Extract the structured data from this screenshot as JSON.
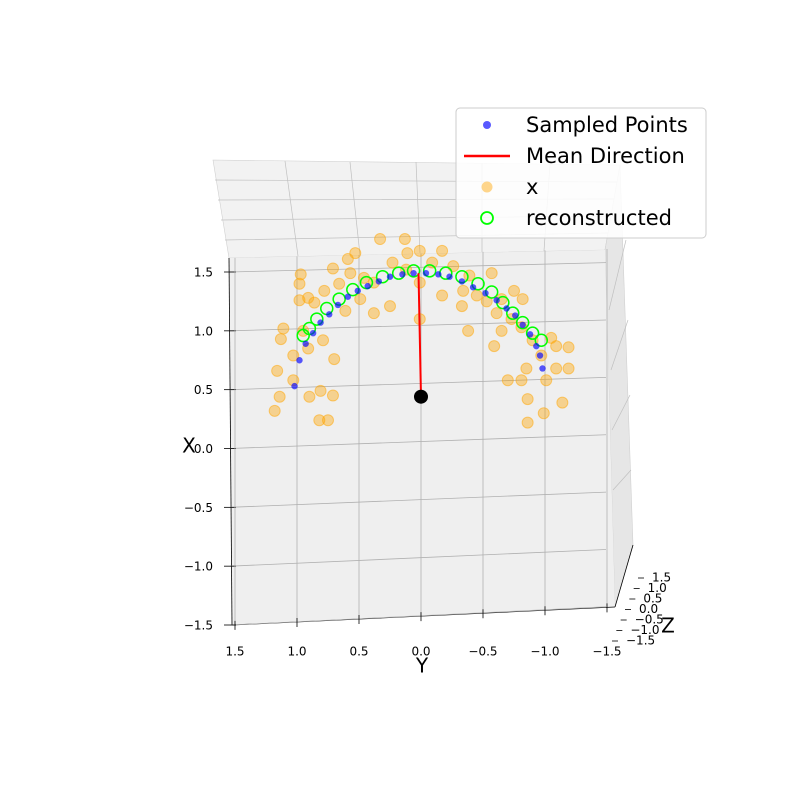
{
  "chart_data": {
    "type": "scatter3d",
    "axis_labels": {
      "X": "X",
      "Y": "Y",
      "Z": "Z"
    },
    "Xlim": [
      -1.5,
      1.5
    ],
    "Ylim": [
      1.5,
      -1.5
    ],
    "Zlim": [
      -1.5,
      1.5
    ],
    "Xticks": [
      {
        "value": -1.5,
        "label": "−1.5"
      },
      {
        "value": -1,
        "label": "−1.0"
      },
      {
        "value": -0.5,
        "label": "−0.5"
      },
      {
        "value": 0,
        "label": "0.0"
      },
      0.5,
      {
        "value": 1,
        "label": "1.0"
      },
      1.5
    ],
    "Yticks": [
      1.5,
      {
        "value": 1,
        "label": "1.0"
      },
      0.5,
      {
        "value": 0,
        "label": "0.0"
      },
      {
        "value": -0.5,
        "label": "−0.5"
      },
      {
        "value": -1,
        "label": "−1.0"
      },
      {
        "value": -1.5,
        "label": "−1.5"
      }
    ],
    "Zticks": [
      1.5,
      {
        "value": 1,
        "label": "1.0"
      },
      0.5,
      {
        "value": 0,
        "label": "0.0"
      },
      {
        "value": -0.5,
        "label": "−0.5"
      },
      {
        "value": -1,
        "label": "−1.0"
      },
      {
        "value": -1.5,
        "label": "−1.5"
      }
    ],
    "grid": true,
    "legend": "upper right",
    "series": [
      {
        "name": "Sampled Points",
        "marker": "dot",
        "color": "#0000ff",
        "X": [
          0.53,
          0.75,
          0.89,
          0.98,
          1.07,
          1.14,
          1.22,
          1.29,
          1.34,
          1.38,
          1.42,
          1.46,
          1.48,
          1.49,
          1.49,
          1.48,
          1.46,
          1.42,
          1.37,
          1.32,
          1.26,
          1.19,
          1.13,
          1.05,
          0.97,
          0.87,
          0.79,
          0.68
        ],
        "Y": [
          1.02,
          0.98,
          0.93,
          0.87,
          0.81,
          0.74,
          0.67,
          0.59,
          0.51,
          0.43,
          0.34,
          0.25,
          0.15,
          0.06,
          -0.04,
          -0.14,
          -0.23,
          -0.33,
          -0.42,
          -0.52,
          -0.61,
          -0.69,
          -0.76,
          -0.82,
          -0.88,
          -0.93,
          -0.96,
          -0.98
        ]
      },
      {
        "name": "Mean Direction",
        "marker": "line",
        "color": "#ff0000",
        "start_color": "#000000",
        "X": [
          0.44,
          1.49
        ],
        "Y": [
          0,
          0.02
        ]
      },
      {
        "name": "x",
        "marker": "disc",
        "color": "#ffa500",
        "X": [
          1.78,
          1.78,
          1.66,
          1.61,
          1.53,
          1.48,
          1.4,
          1.28,
          1.26,
          1.24,
          1.34,
          1.4,
          1.49,
          1.45,
          1.41,
          1.58,
          1.66,
          1.68,
          1.68,
          1.58,
          1.55,
          1.47,
          1.49,
          1.34,
          1.3,
          1.25,
          1.27,
          1.34,
          1.27,
          1.15,
          1.1,
          1.03,
          0.92,
          0.94,
          0.87,
          0.86,
          0.79,
          0.68,
          0.58,
          0.58,
          0.58,
          0.68,
          0.68,
          0.39,
          0.3,
          0.42,
          0.22,
          0.87,
          1.0,
          1.0,
          1.21,
          1.3,
          1.1,
          1.21,
          1.15,
          1.27,
          1.17,
          0.92,
          0.76,
          0.85,
          0.79,
          1.0,
          1.02,
          0.93,
          0.66,
          0.58,
          0.44,
          0.49,
          0.45,
          0.44,
          0.32,
          0.24,
          0.24,
          1.52,
          1.41
        ],
        "Y": [
          0.33,
          0.13,
          0.53,
          0.59,
          0.71,
          0.97,
          0.98,
          0.91,
          0.98,
          0.86,
          0.78,
          0.66,
          0.57,
          0.46,
          0.38,
          0.23,
          0.11,
          0.01,
          -0.17,
          -0.09,
          -0.26,
          -0.39,
          -0.57,
          -0.34,
          -0.45,
          -0.53,
          -0.65,
          -0.75,
          -0.82,
          -0.61,
          -0.73,
          -0.81,
          -0.9,
          -1.05,
          -1.09,
          -1.19,
          -0.97,
          -0.85,
          -0.7,
          -0.81,
          -1.01,
          -1.09,
          -1.19,
          -1.14,
          -0.99,
          -0.86,
          -0.86,
          -0.59,
          -0.65,
          -0.38,
          -0.33,
          -0.17,
          0.01,
          0.25,
          0.38,
          0.49,
          0.61,
          0.79,
          0.7,
          0.91,
          1.03,
          0.95,
          1.11,
          1.13,
          1.16,
          1.03,
          0.9,
          0.81,
          0.71,
          1.14,
          1.18,
          0.82,
          0.75,
          0.12,
          0.01
        ]
      },
      {
        "name": "reconstructed",
        "marker": "ring",
        "color": "#00ff00",
        "X": [
          0.96,
          1.02,
          1.1,
          1.19,
          1.27,
          1.35,
          1.41,
          1.46,
          1.49,
          1.51,
          1.51,
          1.49,
          1.46,
          1.4,
          1.33,
          1.24,
          1.15,
          1.07,
          0.98,
          0.92
        ],
        "Y": [
          0.95,
          0.9,
          0.84,
          0.76,
          0.66,
          0.55,
          0.44,
          0.31,
          0.18,
          0.06,
          -0.07,
          -0.2,
          -0.33,
          -0.46,
          -0.57,
          -0.66,
          -0.74,
          -0.82,
          -0.9,
          -0.97
        ]
      }
    ]
  }
}
